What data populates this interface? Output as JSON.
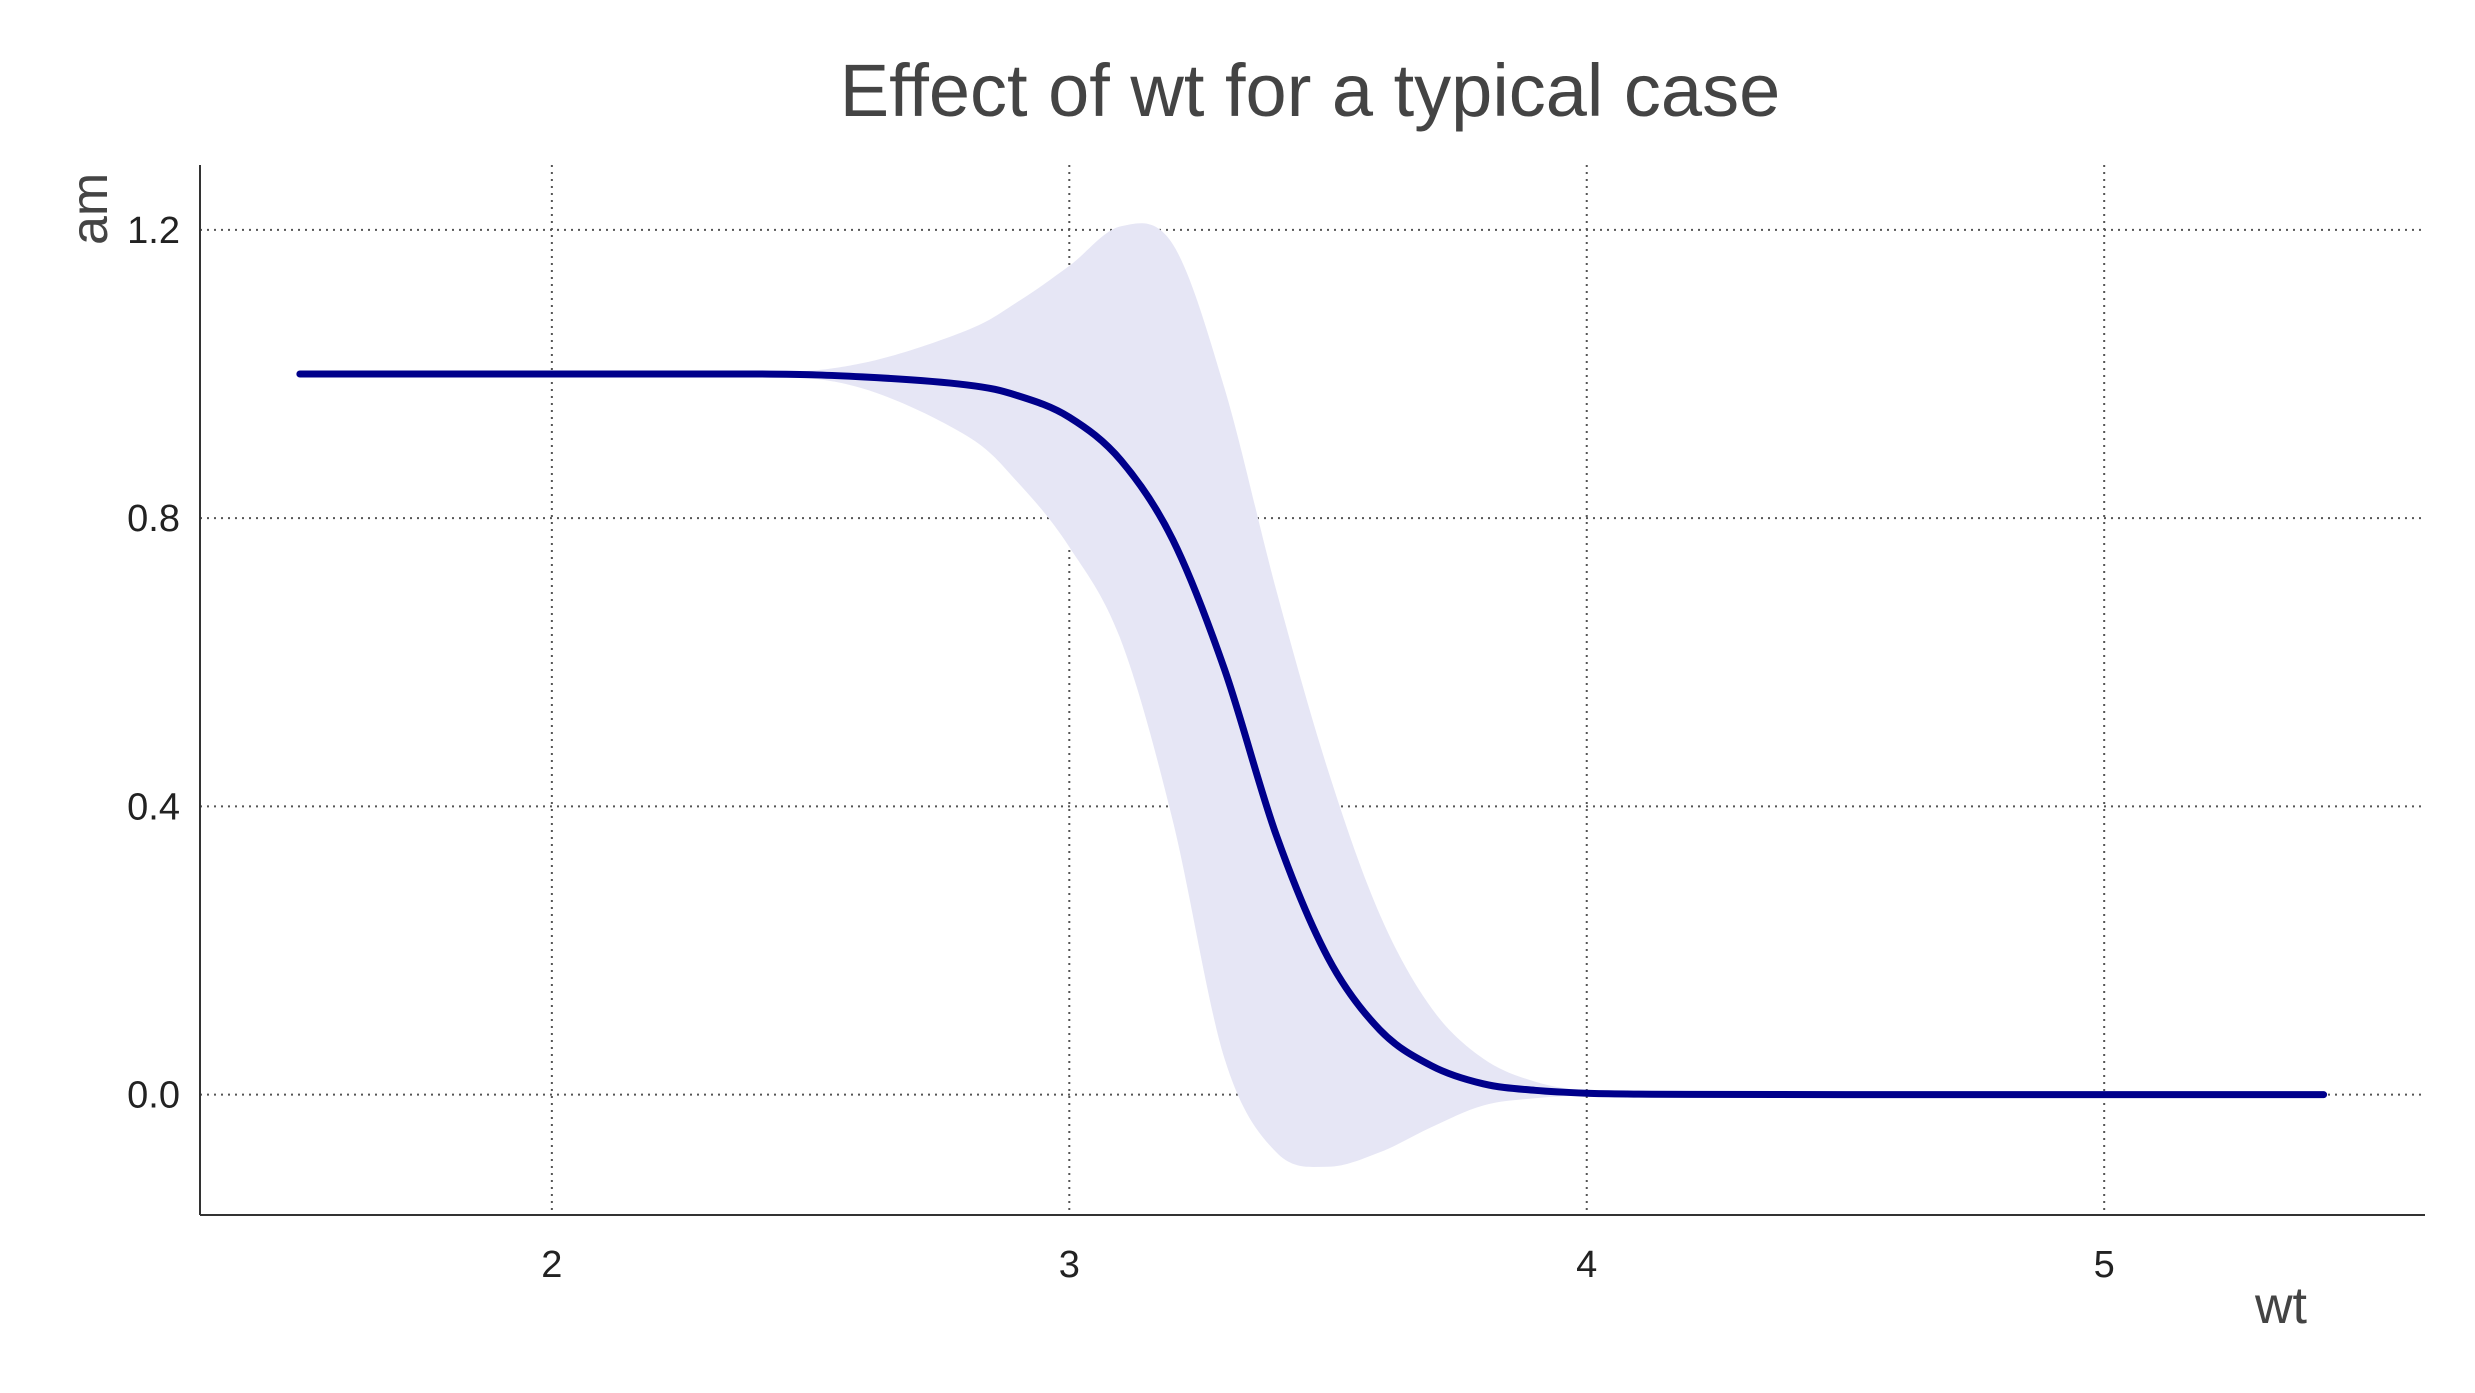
{
  "chart_data": {
    "type": "line",
    "title": "Effect of wt for a typical case",
    "xlabel": "wt",
    "ylabel": "am",
    "xlim": [
      1.32,
      5.62
    ],
    "ylim": [
      -0.167,
      1.29
    ],
    "x_ticks": [
      "2",
      "3",
      "4",
      "5"
    ],
    "y_ticks": [
      "0.0",
      "0.4",
      "0.8",
      "1.2"
    ],
    "x_tick_values": [
      2,
      3,
      4,
      5
    ],
    "y_tick_values": [
      0.0,
      0.4,
      0.8,
      1.2
    ],
    "grid": true,
    "colors": {
      "line": "#00008b",
      "band": "#e6e6f5",
      "grid": "#555555",
      "axis": "#333333"
    },
    "series": [
      {
        "x": [
          1.513,
          2.0,
          2.4,
          2.6,
          2.8,
          2.9,
          3.0,
          3.1,
          3.2,
          3.3,
          3.4,
          3.5,
          3.6,
          3.7,
          3.8,
          3.9,
          4.0,
          4.1,
          4.2,
          4.5,
          5.0,
          5.424
        ],
        "y": [
          1.0,
          1.0,
          1.0,
          0.996,
          0.985,
          0.97,
          0.94,
          0.88,
          0.77,
          0.59,
          0.36,
          0.19,
          0.09,
          0.04,
          0.015,
          0.006,
          0.002,
          0.0008,
          0.0003,
          0.0,
          0.0,
          0.0
        ],
        "lower": [
          1.0,
          1.0,
          0.998,
          0.98,
          0.915,
          0.85,
          0.76,
          0.63,
          0.38,
          0.05,
          -0.08,
          -0.1,
          -0.08,
          -0.045,
          -0.015,
          -0.005,
          -0.001,
          0.0,
          0.0,
          0.0,
          0.0,
          0.0
        ],
        "upper": [
          1.0,
          1.0,
          1.001,
          1.015,
          1.06,
          1.1,
          1.15,
          1.205,
          1.18,
          0.98,
          0.7,
          0.45,
          0.25,
          0.12,
          0.05,
          0.018,
          0.005,
          0.0015,
          0.0005,
          0.0,
          0.0,
          0.0
        ]
      }
    ]
  }
}
